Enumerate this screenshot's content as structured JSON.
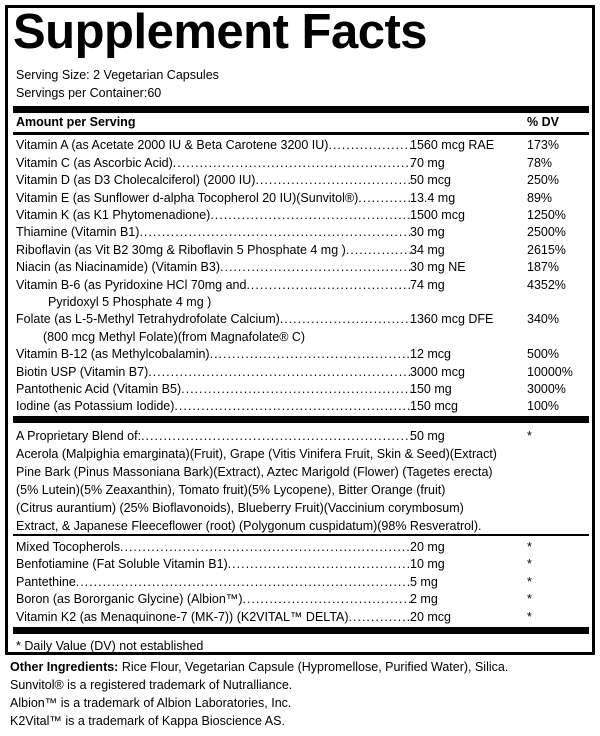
{
  "title": "Supplement Facts",
  "serving_size": "Serving Size:  2 Vegetarian Capsules",
  "servings_per_container": "Servings per Container:60",
  "header": {
    "amount": "Amount per Serving",
    "dv": "% DV"
  },
  "nutrients": [
    {
      "name": "Vitamin A (as Acetate 2000 IU & Beta Carotene 3200 IU)",
      "amount": "1560 mcg RAE",
      "dv": "173%"
    },
    {
      "name": "Vitamin C (as Ascorbic Acid)",
      "amount": "70 mg",
      "dv": "78%"
    },
    {
      "name": "Vitamin D (as D3 Cholecalciferol) (2000 IU)",
      "amount": "50 mcg",
      "dv": "250%"
    },
    {
      "name": "Vitamin E (as Sunflower d-alpha Tocopherol 20 IU)(Sunvitol®)",
      "amount": "13.4 mg",
      "dv": "89%"
    },
    {
      "name": "Vitamin K (as K1 Phytomenadione)",
      "amount": "1500 mcg",
      "dv": "1250%"
    },
    {
      "name": "Thiamine (Vitamin B1)",
      "amount": "30 mg",
      "dv": "2500%"
    },
    {
      "name": "Riboflavin (as Vit B2 30mg & Riboflavin 5 Phosphate 4 mg )",
      "amount": "34 mg",
      "dv": "2615%"
    },
    {
      "name": "Niacin (as Niacinamide) (Vitamin B3)",
      "amount": "30 mg NE",
      "dv": "187%"
    },
    {
      "name": "Vitamin B-6 (as Pyridoxine HCl 70mg and",
      "continuation": "Pyridoxyl 5 Phosphate 4 mg )",
      "amount": "74 mg",
      "dv": "4352%"
    },
    {
      "name": "Folate (as L-5-Methyl Tetrahydrofolate Calcium)",
      "continuation": "(800 mcg Methyl Folate)(from Magnafolate® C)",
      "amount": "1360 mcg DFE",
      "dv": "340%"
    },
    {
      "name": "Vitamin B-12 (as Methylcobalamin)",
      "amount": "12 mcg",
      "dv": "500%"
    },
    {
      "name": "Biotin USP (Vitamin B7)",
      "amount": "3000 mcg",
      "dv": "10000%"
    },
    {
      "name": "Pantothenic Acid (Vitamin B5)",
      "amount": "150 mg",
      "dv": "3000%"
    },
    {
      "name": "Iodine (as Potassium Iodide)",
      "amount": "150 mcg",
      "dv": "100%"
    }
  ],
  "blend": {
    "name": "A Proprietary Blend of:",
    "amount": "50 mg",
    "dv": "*",
    "lines": [
      "Acerola (Malpighia emarginata)(Fruit), Grape (Vitis Vinifera Fruit, Skin & Seed)(Extract)",
      "Pine Bark (Pinus Massoniana Bark)(Extract), Aztec Marigold (Flower) (Tagetes erecta)",
      "(5% Lutein)(5% Zeaxanthin), Tomato fruit)(5% Lycopene), Bitter Orange (fruit)",
      "(Citrus aurantium) (25% Bioflavonoids), Blueberry Fruit)(Vaccinium corymbosum)",
      "Extract, & Japanese Fleeceflower (root) (Polygonum cuspidatum)(98% Resveratrol)."
    ]
  },
  "others": [
    {
      "name": "Mixed Tocopherols",
      "amount": "20 mg",
      "dv": "*"
    },
    {
      "name": "Benfotiamine (Fat Soluble Vitamin B1)",
      "amount": "10 mg",
      "dv": "*"
    },
    {
      "name": "Pantethine",
      "amount": "5 mg",
      "dv": "*"
    },
    {
      "name": "Boron (as Bororganic Glycine) (Albion™)",
      "amount": "2 mg",
      "dv": "*"
    },
    {
      "name": "Vitamin K2 (as Menaquinone-7 (MK-7)) (K2VITAL™ DELTA)",
      "amount": "20 mcg",
      "dv": "*"
    }
  ],
  "dv_note": "* Daily Value (DV) not established",
  "footer": {
    "other_label": "Other Ingredients:",
    "other_text": " Rice Flour, Vegetarian Capsule (Hypromellose, Purified Water), Silica.",
    "trademarks": [
      "Sunvitol® is a registered trademark of Nutralliance.",
      "Albion™ is a trademark of Albion Laboratories, Inc.",
      "K2Vital™ is a trademark of Kappa Bioscience AS."
    ]
  }
}
